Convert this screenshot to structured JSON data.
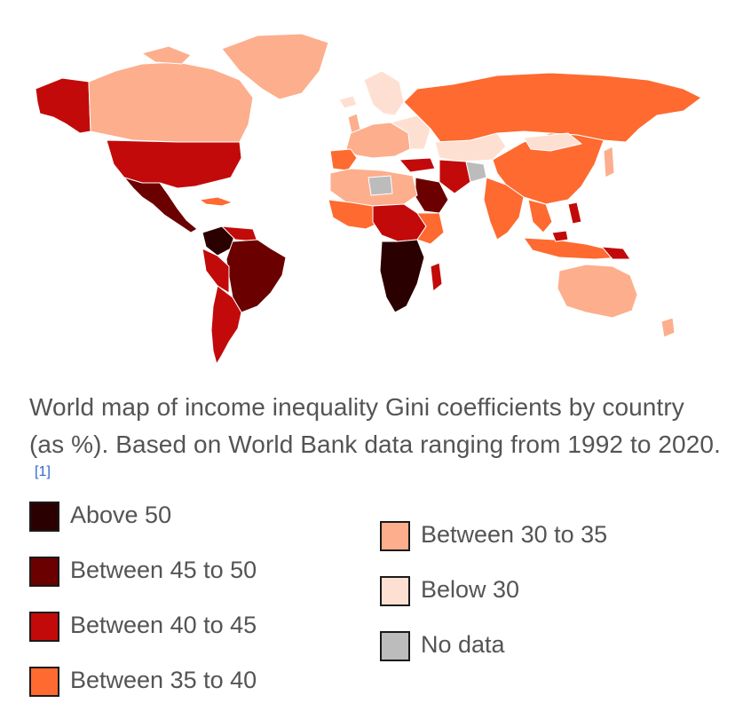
{
  "caption": {
    "text": "World map of income inequality Gini coefficients by country (as %). Based on World Bank data ranging from 1992 to 2020.",
    "ref": "[1]"
  },
  "colors": {
    "above50": "#2a0000",
    "b45_50": "#6b0000",
    "b40_45": "#c20a0a",
    "b35_40": "#fe6a30",
    "b30_35": "#fdae8c",
    "below30": "#fee0d2",
    "nodata": "#bcbcbc"
  },
  "legend": {
    "left": [
      {
        "label": "Above 50",
        "color": "#2a0000"
      },
      {
        "label": "Between 45 to 50",
        "color": "#6b0000"
      },
      {
        "label": "Between 40 to 45",
        "color": "#c20a0a"
      },
      {
        "label": "Between 35 to 40",
        "color": "#fe6a30"
      }
    ],
    "right": [
      {
        "label": "Between 30 to 35",
        "color": "#fdae8c"
      },
      {
        "label": "Below 30",
        "color": "#fee0d2"
      },
      {
        "label": "No data",
        "color": "#bcbcbc"
      }
    ]
  }
}
